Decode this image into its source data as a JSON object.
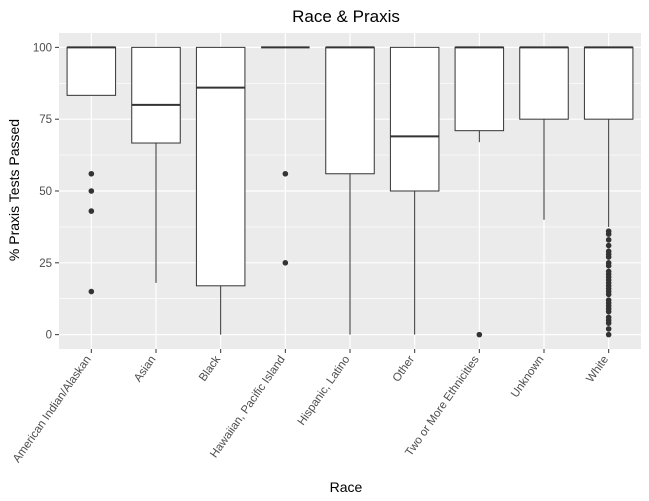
{
  "chart_data": {
    "type": "boxplot",
    "title": "Race & Praxis",
    "xlabel": "Race",
    "ylabel": "% Praxis Tests Passed",
    "ylim": [
      -5,
      105
    ],
    "yticks": [
      0,
      25,
      50,
      75,
      100
    ],
    "grid": true,
    "legend": "none",
    "colors": {
      "panel_background": "#ebebeb",
      "grid": "#ffffff",
      "box_fill": "#ffffff",
      "box_outline": "#333333",
      "tick_text": "#4d4d4d"
    },
    "categories": [
      "American Indian/Alaskan",
      "Asian",
      "Black",
      "Hawaiian, Pacific Island",
      "Hispanic, Latino",
      "Other",
      "Two or More Ethnicities",
      "Unknown",
      "White"
    ],
    "boxes": [
      {
        "q1": 83.3,
        "median": 100,
        "q3": 100,
        "whisker_low": 83.3,
        "whisker_high": 100,
        "outliers": [
          56,
          50,
          43,
          15
        ]
      },
      {
        "q1": 66.7,
        "median": 80,
        "q3": 100,
        "whisker_low": 18,
        "whisker_high": 100,
        "outliers": []
      },
      {
        "q1": 17,
        "median": 86,
        "q3": 100,
        "whisker_low": 0,
        "whisker_high": 100,
        "outliers": []
      },
      {
        "q1": 100,
        "median": 100,
        "q3": 100,
        "whisker_low": 100,
        "whisker_high": 100,
        "outliers": [
          56,
          25
        ]
      },
      {
        "q1": 56,
        "median": 100,
        "q3": 100,
        "whisker_low": 0,
        "whisker_high": 100,
        "outliers": []
      },
      {
        "q1": 50,
        "median": 69,
        "q3": 100,
        "whisker_low": 0,
        "whisker_high": 100,
        "outliers": []
      },
      {
        "q1": 71,
        "median": 100,
        "q3": 100,
        "whisker_low": 67,
        "whisker_high": 100,
        "outliers": [
          0
        ]
      },
      {
        "q1": 75,
        "median": 100,
        "q3": 100,
        "whisker_low": 40,
        "whisker_high": 100,
        "outliers": []
      },
      {
        "q1": 75,
        "median": 100,
        "q3": 100,
        "whisker_low": 37.5,
        "whisker_high": 100,
        "outliers": [
          36,
          35,
          33,
          31,
          29,
          28,
          27,
          25,
          24,
          22,
          21,
          20,
          19,
          18,
          17,
          16,
          15,
          14,
          12,
          11,
          10,
          9,
          8,
          6,
          5,
          4,
          2,
          0
        ]
      }
    ]
  }
}
